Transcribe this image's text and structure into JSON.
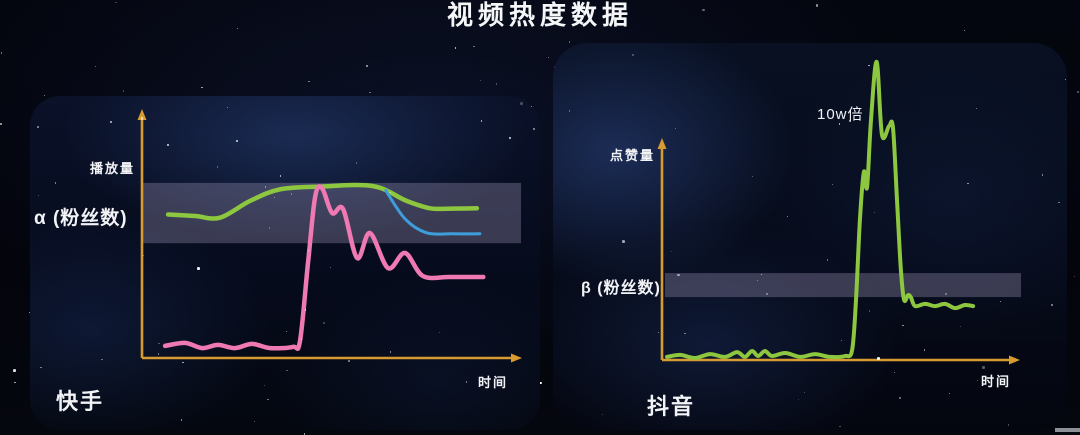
{
  "title": "视频热度数据",
  "panels": {
    "kuaishou": {
      "platform": "快手",
      "y_axis_label": "播放量",
      "x_axis_label": "时间",
      "band_label": "α (粉丝数)"
    },
    "douyin": {
      "platform": "抖音",
      "y_axis_label": "点赞量",
      "x_axis_label": "时间",
      "band_label": "β (粉丝数)",
      "annotation": "10w倍"
    }
  },
  "colors": {
    "axis": "#d89b30",
    "band": "rgba(168,158,192,0.32)",
    "green": "#8dc63f",
    "pink": "#ef79b3",
    "blue": "#3d9ed9",
    "text": "#f2f3f6"
  },
  "chart_data": [
    {
      "type": "line",
      "panel": "kuaishou",
      "title": "快手",
      "xlabel": "时间",
      "ylabel": "播放量",
      "grid": false,
      "legend": "none",
      "axis_ticks": "none (conceptual sketch, values in % of axis range)",
      "band": {
        "label": "α (粉丝数)",
        "y_pct_range": [
          46.5,
          70.9
        ]
      },
      "series": [
        {
          "name": "green-line",
          "color": "#8dc63f",
          "points": [
            [
              6.9,
              58.1
            ],
            [
              14,
              57.5
            ],
            [
              20.6,
              56.8
            ],
            [
              28.6,
              63.6
            ],
            [
              36.5,
              68.3
            ],
            [
              47.1,
              69.4
            ],
            [
              61.1,
              69.6
            ],
            [
              70,
              63.6
            ],
            [
              76.2,
              60.6
            ],
            [
              82,
              60.5
            ],
            [
              88.6,
              60.6
            ]
          ]
        },
        {
          "name": "blue-line",
          "color": "#3d9ed9",
          "points": [
            [
              64.5,
              67.8
            ],
            [
              69.6,
              56.3
            ],
            [
              75.3,
              50.7
            ],
            [
              82,
              50.3
            ],
            [
              89.4,
              50.3
            ]
          ]
        },
        {
          "name": "pink-line",
          "color": "#ef79b3",
          "points": [
            [
              6.1,
              4.9
            ],
            [
              11.4,
              6.1
            ],
            [
              15.9,
              4.0
            ],
            [
              20.1,
              5.3
            ],
            [
              24.6,
              4.0
            ],
            [
              29.1,
              5.7
            ],
            [
              33.9,
              4.0
            ],
            [
              39.9,
              4.5
            ],
            [
              41.8,
              6.9
            ],
            [
              43.9,
              38.1
            ],
            [
              45.8,
              65.2
            ],
            [
              47.6,
              68.8
            ],
            [
              50.3,
              58.7
            ],
            [
              53.2,
              60.3
            ],
            [
              56.9,
              40.5
            ],
            [
              60.3,
              50.6
            ],
            [
              65.1,
              36.4
            ],
            [
              69.6,
              42.5
            ],
            [
              74.3,
              33.2
            ],
            [
              81.5,
              32.8
            ],
            [
              90.3,
              32.8
            ]
          ]
        }
      ]
    },
    {
      "type": "line",
      "panel": "douyin",
      "title": "抖音",
      "xlabel": "时间",
      "ylabel": "点赞量",
      "grid": false,
      "legend": "none",
      "axis_ticks": "none (conceptual sketch, values in % of axis range; spike exceeds axis height)",
      "annotation": {
        "text": "10w倍",
        "near": "main spike peak"
      },
      "band": {
        "label": "β (粉丝数)",
        "y_pct_range": [
          28.6,
          39.5
        ]
      },
      "series": [
        {
          "name": "green-line",
          "color": "#8dc63f",
          "points": [
            [
              1.4,
              1.4
            ],
            [
              5.1,
              2.3
            ],
            [
              9.3,
              0.9
            ],
            [
              13.5,
              2.7
            ],
            [
              17.7,
              1.4
            ],
            [
              21.1,
              3.6
            ],
            [
              23.3,
              1.4
            ],
            [
              25.3,
              4.1
            ],
            [
              27,
              1.8
            ],
            [
              28.9,
              4.1
            ],
            [
              30.9,
              1.8
            ],
            [
              34.6,
              3.2
            ],
            [
              38.8,
              1.4
            ],
            [
              43,
              2.7
            ],
            [
              47.2,
              1.4
            ],
            [
              51.4,
              1.8
            ],
            [
              53.4,
              4.5
            ],
            [
              54.5,
              27.3
            ],
            [
              55.6,
              63.6
            ],
            [
              56.7,
              85.5
            ],
            [
              57.6,
              78.6
            ],
            [
              58.7,
              109.1
            ],
            [
              60.3,
              135.5
            ],
            [
              61.8,
              102.3
            ],
            [
              63.8,
              106.4
            ],
            [
              64.9,
              105.5
            ],
            [
              66,
              72.7
            ],
            [
              67.1,
              40.9
            ],
            [
              68,
              27.3
            ],
            [
              69.1,
              29.5
            ],
            [
              69.9,
              28.6
            ],
            [
              71.1,
              24.5
            ],
            [
              73.9,
              25.5
            ],
            [
              76.7,
              24.5
            ],
            [
              79.5,
              25.5
            ],
            [
              82.3,
              23.6
            ],
            [
              85.1,
              25
            ],
            [
              87.4,
              24.5
            ]
          ]
        }
      ]
    }
  ]
}
